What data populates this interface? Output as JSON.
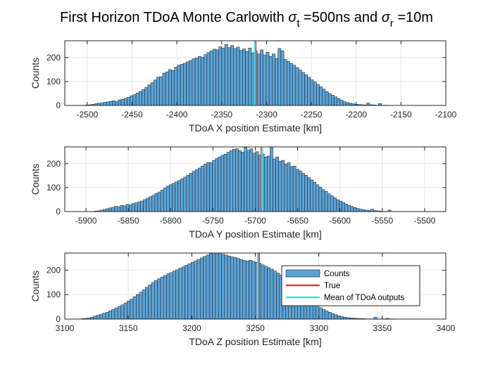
{
  "figure": {
    "title_main": "First Horizon TDoA Monte Carlowith ",
    "sigma_symbol": "σ",
    "title_sub_t": "t",
    "title_mid": " =500ns and ",
    "title_sub_r": "r",
    "title_end": " =10m"
  },
  "chart_data": [
    {
      "type": "bar",
      "title": "",
      "xlabel": "TDoA X position Estimate [km]",
      "ylabel": "Counts",
      "xlim": [
        -2525,
        -2100
      ],
      "ylim": [
        0,
        270
      ],
      "xticks": [
        -2500,
        -2450,
        -2400,
        -2350,
        -2300,
        -2250,
        -2200,
        -2150,
        -2100
      ],
      "yticks": [
        0,
        100,
        200
      ],
      "grid": true,
      "bin_start": -2505,
      "bin_width": 3.3,
      "values": [
        1,
        2,
        3,
        5,
        7,
        9,
        10,
        13,
        15,
        17,
        19,
        16,
        23,
        26,
        30,
        34,
        40,
        45,
        52,
        58,
        67,
        75,
        86,
        95,
        106,
        118,
        120,
        135,
        140,
        150,
        146,
        160,
        168,
        172,
        176,
        182,
        188,
        195,
        198,
        205,
        201,
        212,
        221,
        228,
        235,
        232,
        245,
        240,
        255,
        242,
        250,
        238,
        244,
        230,
        236,
        226,
        240,
        220,
        228,
        215,
        232,
        210,
        222,
        205,
        215,
        196,
        238,
        228,
        192,
        184,
        176,
        168,
        158,
        148,
        138,
        128,
        118,
        107,
        98,
        88,
        78,
        68,
        58,
        50,
        43,
        36,
        29,
        22,
        16,
        12,
        9,
        7,
        5,
        4,
        3,
        2,
        10,
        3,
        2,
        1,
        8,
        1,
        1
      ],
      "true_value": -2312,
      "mean_value": -2313
    },
    {
      "type": "bar",
      "title": "",
      "xlabel": "TDoA Y position Estimate [km]",
      "ylabel": "Counts",
      "xlim": [
        -5925,
        -5475
      ],
      "ylim": [
        0,
        270
      ],
      "xticks": [
        -5900,
        -5850,
        -5800,
        -5750,
        -5700,
        -5650,
        -5600,
        -5550,
        -5500
      ],
      "yticks": [
        0,
        100,
        200
      ],
      "grid": true,
      "bin_start": -5890,
      "bin_width": 3.4,
      "values": [
        2,
        3,
        6,
        9,
        12,
        15,
        18,
        22,
        20,
        26,
        24,
        30,
        28,
        34,
        36,
        40,
        44,
        50,
        56,
        62,
        68,
        76,
        82,
        90,
        98,
        106,
        112,
        118,
        124,
        130,
        137,
        144,
        152,
        160,
        168,
        175,
        182,
        190,
        198,
        205,
        205,
        214,
        222,
        228,
        235,
        240,
        248,
        255,
        260,
        262,
        255,
        248,
        268,
        256,
        262,
        244,
        250,
        236,
        240,
        228,
        232,
        270,
        220,
        228,
        210,
        214,
        198,
        204,
        188,
        190,
        176,
        170,
        160,
        152,
        142,
        132,
        122,
        112,
        102,
        92,
        84,
        74,
        66,
        58,
        50,
        44,
        38,
        32,
        26,
        21,
        17,
        13,
        10,
        8,
        6,
        5,
        10,
        4,
        3,
        2,
        1,
        1,
        6
      ],
      "true_value": -5693,
      "mean_value": -5692
    },
    {
      "type": "bar",
      "title": "",
      "xlabel": "TDoA Z position Estimate [km]",
      "ylabel": "Counts",
      "xlim": [
        3100,
        3400
      ],
      "ylim": [
        0,
        270
      ],
      "xticks": [
        3100,
        3150,
        3200,
        3250,
        3300,
        3350,
        3400
      ],
      "yticks": [
        0,
        100,
        200
      ],
      "grid": true,
      "bin_start": 3113,
      "bin_width": 2.4,
      "values": [
        2,
        3,
        5,
        8,
        12,
        16,
        20,
        24,
        28,
        34,
        40,
        46,
        52,
        58,
        66,
        74,
        82,
        92,
        100,
        110,
        120,
        130,
        140,
        150,
        158,
        165,
        172,
        178,
        185,
        190,
        196,
        202,
        208,
        214,
        220,
        226,
        232,
        238,
        244,
        250,
        256,
        262,
        268,
        270,
        274,
        270,
        265,
        262,
        258,
        254,
        252,
        248,
        244,
        240,
        238,
        240,
        236,
        232,
        228,
        222,
        216,
        210,
        204,
        196,
        188,
        180,
        170,
        160,
        150,
        140,
        130,
        118,
        106,
        95,
        84,
        74,
        64,
        55,
        47,
        40,
        34,
        28,
        23,
        18,
        14,
        10,
        8,
        6,
        5,
        4,
        3,
        2,
        2,
        1,
        1,
        1,
        8,
        1,
        1,
        1,
        3,
        1,
        1
      ],
      "true_value": 3253,
      "mean_value": 3252,
      "legend": {
        "position": "inside-right",
        "entries": [
          "Counts",
          "True",
          "Mean of TDoA outputs"
        ]
      }
    }
  ],
  "colors": {
    "bar_fill": "#5ba3d6",
    "bar_edge": "#1a1a1a",
    "true_line": "#e03a3a",
    "mean_line": "#33e6e6",
    "grid": "#e4e4e4",
    "axes": "#262626"
  }
}
